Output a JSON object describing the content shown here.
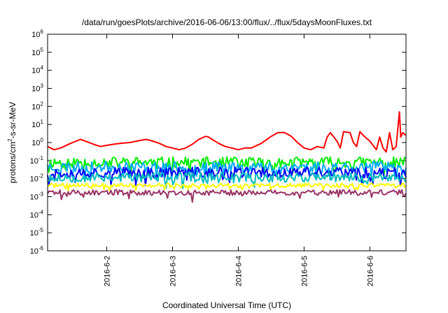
{
  "chart_data": {
    "type": "line",
    "title": "/data/run/goesPlots/archive/2016-06-06/13:00/flux/../flux/5daysMoonFluxes.txt",
    "xlabel": "Coordinated Universal Time (UTC)",
    "ylabel": {
      "base": "protons/cm",
      "sup": "2",
      "rest": "-s-sr-MeV"
    },
    "yscale": "log",
    "ylim": [
      1e-06,
      1000000.0
    ],
    "xlim": [
      1.1,
      6.55
    ],
    "x_unit": "days of June 2016 (1.0 = 2016-06-01 00:00 UTC)",
    "grid": false,
    "legend": "none",
    "y_ticks": [
      {
        "base": "10",
        "exp": "-6"
      },
      {
        "base": "10",
        "exp": "-5"
      },
      {
        "base": "10",
        "exp": "-4"
      },
      {
        "base": "10",
        "exp": "-3"
      },
      {
        "base": "10",
        "exp": "-2"
      },
      {
        "base": "10",
        "exp": "-1"
      },
      {
        "base": "10",
        "exp": "0"
      },
      {
        "base": "10",
        "exp": "1"
      },
      {
        "base": "10",
        "exp": "2"
      },
      {
        "base": "10",
        "exp": "3"
      },
      {
        "base": "10",
        "exp": "4"
      },
      {
        "base": "10",
        "exp": "5"
      },
      {
        "base": "10",
        "exp": "6"
      }
    ],
    "x_ticks": [
      {
        "value": 2,
        "label": "2016-6-2"
      },
      {
        "value": 3,
        "label": "2016-6-3"
      },
      {
        "value": 4,
        "label": "2016-6-4"
      },
      {
        "value": 5,
        "label": "2016-6-5"
      },
      {
        "value": 6,
        "label": "2016-6-6"
      }
    ],
    "series": [
      {
        "color": "#ff0000",
        "x": [
          1.1,
          1.2,
          1.3,
          1.45,
          1.6,
          1.7,
          1.8,
          1.9,
          2.0,
          2.1,
          2.2,
          2.35,
          2.5,
          2.6,
          2.7,
          2.8,
          2.9,
          3.0,
          3.1,
          3.2,
          3.3,
          3.4,
          3.5,
          3.55,
          3.6,
          3.7,
          3.8,
          3.9,
          4.0,
          4.1,
          4.2,
          4.35,
          4.5,
          4.6,
          4.7,
          4.8,
          4.9,
          5.0,
          5.1,
          5.2,
          5.3,
          5.35,
          5.4,
          5.5,
          5.55,
          5.6,
          5.7,
          5.75,
          5.8,
          5.85,
          5.9,
          6.0,
          6.1,
          6.15,
          6.2,
          6.25,
          6.3,
          6.35,
          6.4,
          6.45,
          6.47,
          6.5,
          6.55
        ],
        "y": [
          0.6,
          0.4,
          0.5,
          0.9,
          1.5,
          1.1,
          0.8,
          0.6,
          0.7,
          0.8,
          0.9,
          1.0,
          1.3,
          1.5,
          1.2,
          0.9,
          0.6,
          0.5,
          0.4,
          0.5,
          0.8,
          1.5,
          2.2,
          2.0,
          1.5,
          0.9,
          0.6,
          0.5,
          0.4,
          0.5,
          0.5,
          0.9,
          2.2,
          3.5,
          3.6,
          2.3,
          1.0,
          0.5,
          0.4,
          0.6,
          0.5,
          2.0,
          3.5,
          1.2,
          0.5,
          4.0,
          3.5,
          1.0,
          0.6,
          4.0,
          2.5,
          1.2,
          0.4,
          2.0,
          0.5,
          0.3,
          3.5,
          0.4,
          0.6,
          50,
          2.0,
          3.5,
          2.5
        ]
      },
      {
        "color": "#00ee00",
        "base": 0.08,
        "amp": 0.5,
        "seed": 11
      },
      {
        "color": "#00aaff",
        "base": 0.045,
        "amp": 0.5,
        "seed": 23
      },
      {
        "color": "#0000ff",
        "base": 0.022,
        "amp": 0.5,
        "seed": 37
      },
      {
        "color": "#00bbbb",
        "base": 0.012,
        "amp": 0.45,
        "seed": 53
      },
      {
        "color": "#ffff00",
        "base": 0.0042,
        "amp": 0.2,
        "seed": 71
      },
      {
        "color": "#993366",
        "base": 0.0017,
        "amp": 0.25,
        "seed": 89,
        "dips": [
          [
            1.3,
            0.0007
          ],
          [
            3.3,
            0.0005
          ]
        ]
      }
    ]
  }
}
